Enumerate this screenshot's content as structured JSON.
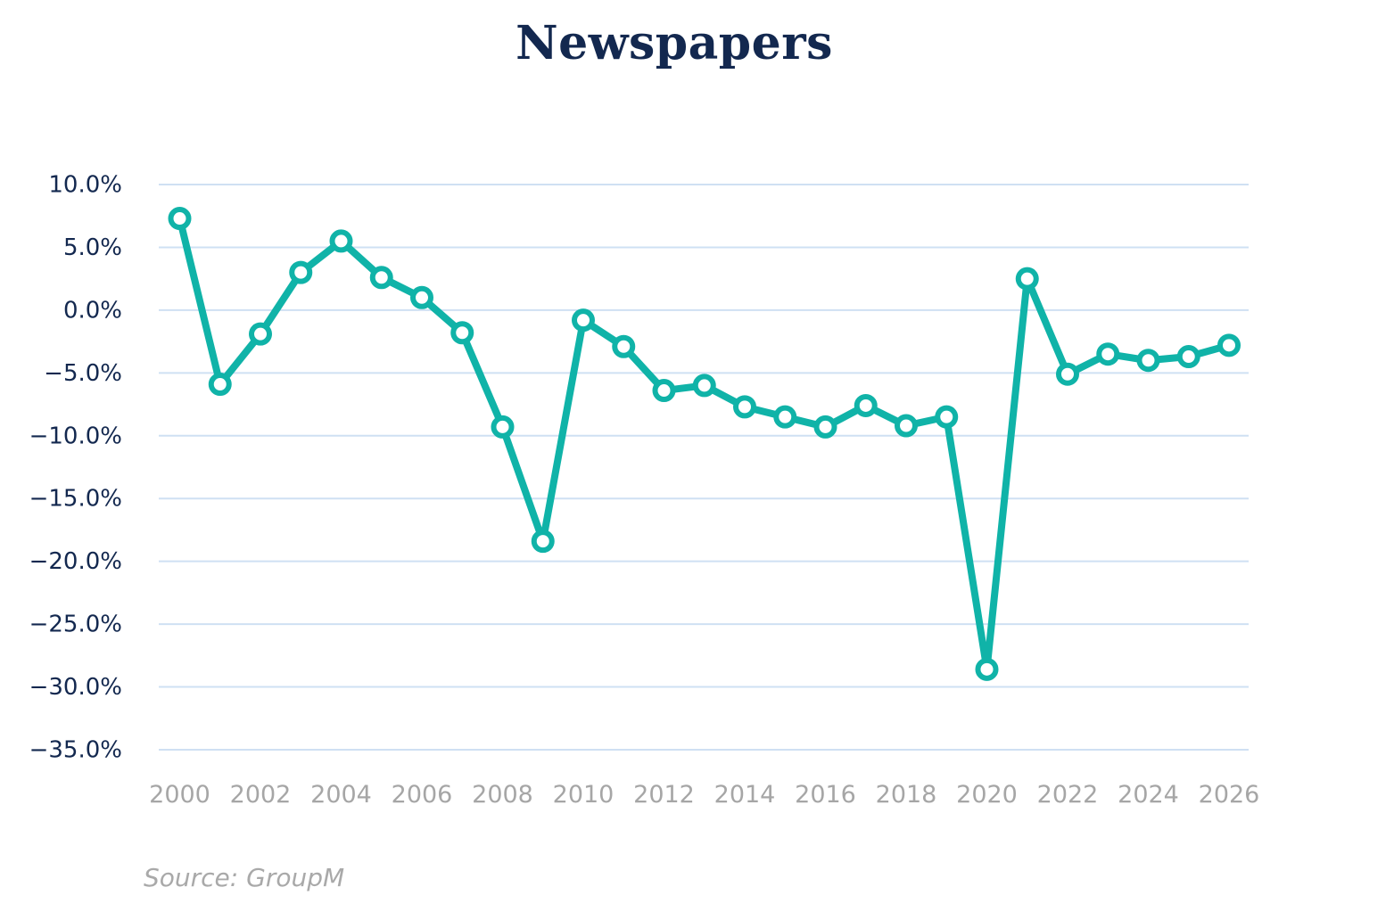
{
  "source_note": "Source: GroupM",
  "colors": {
    "line": "#10b3a8",
    "grid": "#cfe0f3",
    "title": "#13284f",
    "y_tick": "#13284f",
    "x_tick": "#a6a6a6",
    "source": "#a9a9a9"
  },
  "chart_data": {
    "type": "line",
    "title": "Newspapers",
    "xlabel": "",
    "ylabel": "",
    "ylim": [
      -35,
      10
    ],
    "xlim": [
      2000,
      2026
    ],
    "y_ticks": [
      10,
      5,
      0,
      -5,
      -10,
      -15,
      -20,
      -25,
      -30,
      -35
    ],
    "y_tick_labels": [
      "10.0%",
      "5.0%",
      "0.0%",
      "−5.0%",
      "−10.0%",
      "−15.0%",
      "−20.0%",
      "−25.0%",
      "−30.0%",
      "−35.0%"
    ],
    "x_ticks": [
      2000,
      2002,
      2004,
      2006,
      2008,
      2010,
      2012,
      2014,
      2016,
      2018,
      2020,
      2022,
      2024,
      2026
    ],
    "x_tick_labels": [
      "2000",
      "2002",
      "2004",
      "2006",
      "2008",
      "2010",
      "2012",
      "2014",
      "2016",
      "2018",
      "2020",
      "2022",
      "2024",
      "2026"
    ],
    "grid": true,
    "legend": false,
    "series": [
      {
        "x": [
          2000,
          2001,
          2002,
          2003,
          2004,
          2005,
          2006,
          2007,
          2008,
          2009,
          2010,
          2011,
          2012,
          2013,
          2014,
          2015,
          2016,
          2017,
          2018,
          2019,
          2020,
          2021,
          2022,
          2023,
          2024,
          2025,
          2026
        ],
        "values": [
          7.3,
          -5.9,
          -1.9,
          3.0,
          5.5,
          2.6,
          1.0,
          -1.8,
          -9.3,
          -18.4,
          -0.8,
          -2.9,
          -6.4,
          -6.0,
          -7.7,
          -8.5,
          -9.3,
          -7.6,
          -9.2,
          -8.5,
          -28.6,
          2.5,
          -5.1,
          -3.5,
          -4.0,
          -3.7,
          -2.8
        ]
      }
    ]
  }
}
